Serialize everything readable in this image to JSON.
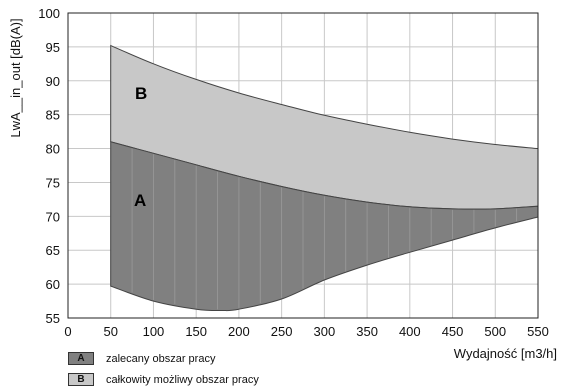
{
  "chart_data": {
    "type": "area",
    "xlabel": "Wydajność [m3/h]",
    "ylabel": "LwA__in_out [dB(A)]",
    "xlim": [
      0,
      550
    ],
    "ylim": [
      55,
      100
    ],
    "x_ticks": [
      0,
      50,
      100,
      150,
      200,
      250,
      300,
      350,
      400,
      450,
      500,
      550
    ],
    "y_ticks": [
      55,
      60,
      65,
      70,
      75,
      80,
      85,
      90,
      95,
      100
    ],
    "grid": true,
    "regions": [
      {
        "label": "A",
        "color": "#808080",
        "upper": {
          "x": [
            50,
            100,
            150,
            200,
            250,
            300,
            350,
            400,
            450,
            500,
            550
          ],
          "y": [
            81,
            79.3,
            77.6,
            75.9,
            74.4,
            73.1,
            72.1,
            71.4,
            71.1,
            71.1,
            71.5
          ]
        },
        "lower": {
          "x": [
            50,
            100,
            150,
            180,
            200,
            250,
            300,
            350,
            400,
            450,
            500,
            550
          ],
          "y": [
            59.7,
            57.5,
            56.3,
            56.1,
            56.3,
            57.8,
            60.6,
            62.8,
            64.7,
            66.5,
            68.3,
            69.9
          ]
        }
      },
      {
        "label": "B",
        "color": "#c8c8c8",
        "upper": {
          "x": [
            50,
            100,
            150,
            200,
            250,
            300,
            350,
            400,
            450,
            500,
            550
          ],
          "y": [
            95.2,
            92.5,
            90.2,
            88.2,
            86.5,
            84.9,
            83.6,
            82.4,
            81.4,
            80.6,
            80
          ]
        },
        "lower": {
          "x": [
            50,
            100,
            150,
            200,
            250,
            300,
            350,
            400,
            450,
            500,
            550
          ],
          "y": [
            81,
            79.3,
            77.6,
            75.9,
            74.4,
            73.1,
            72.1,
            71.4,
            71.1,
            71.1,
            71.5
          ]
        }
      }
    ],
    "legend": [
      {
        "key": "A",
        "text": "zalecany obszar pracy",
        "color": "#808080"
      },
      {
        "key": "B",
        "text": "całkowity możliwy obszar pracy",
        "color": "#c8c8c8"
      }
    ]
  }
}
